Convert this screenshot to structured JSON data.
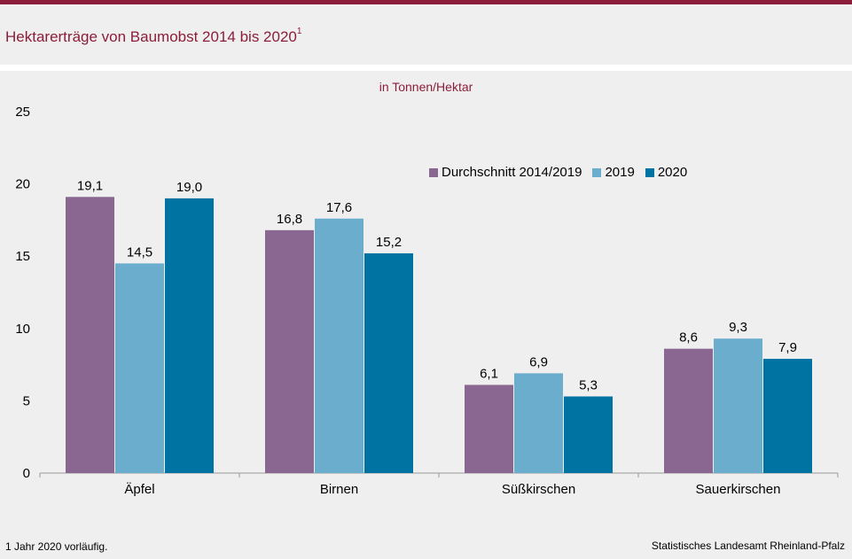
{
  "header": {
    "title": "Hektarerträge von Baumobst 2014 bis 2020",
    "title_sup": "1"
  },
  "unit_label": "in Tonnen/Hektar",
  "footnote": "1 Jahr 2020 vorläufig.",
  "source": "Statistisches Landesamt Rheinland-Pfalz",
  "colors": {
    "accent": "#8c1d3a"
  },
  "chart_data": {
    "type": "bar",
    "categories": [
      "Äpfel",
      "Birnen",
      "Süßkirschen",
      "Sauerkirschen"
    ],
    "series": [
      {
        "name": "Durchschnitt 2014/2019",
        "color": "#8a6791",
        "values": [
          19.1,
          16.8,
          6.1,
          8.6
        ],
        "labels": [
          "19,1",
          "16,8",
          "6,1",
          "8,6"
        ]
      },
      {
        "name": "2019",
        "color": "#6aadcd",
        "values": [
          14.5,
          17.6,
          6.9,
          9.3
        ],
        "labels": [
          "14,5",
          "17,6",
          "6,9",
          "9,3"
        ]
      },
      {
        "name": "2020",
        "color": "#0073a3",
        "values": [
          19.0,
          15.2,
          5.3,
          7.9
        ],
        "labels": [
          "19,0",
          "15,2",
          "5,3",
          "7,9"
        ]
      }
    ],
    "ylim": [
      0,
      25
    ],
    "yticks": [
      0,
      5,
      10,
      15,
      20,
      25
    ],
    "grid": false,
    "legend_position": "top-right"
  }
}
